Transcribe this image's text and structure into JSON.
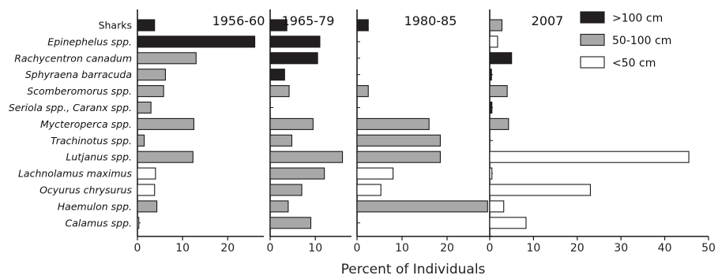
{
  "chart_data": {
    "type": "bar",
    "orientation": "horizontal",
    "categories": [
      "Sharks",
      "Epinephelus spp.",
      "Rachycentron canadum",
      "Sphyraena barracuda",
      "Scomberomorus spp.",
      "Seriola spp., Caranx spp.",
      "Mycteroperca spp.",
      "Trachinotus spp.",
      "Lutjanus spp.",
      "Lachnolamus maximus",
      "Ocyurus chrysurus",
      "Haemulon spp.",
      "Calamus spp."
    ],
    "category_italic": [
      false,
      true,
      true,
      true,
      true,
      true,
      true,
      true,
      true,
      true,
      true,
      true,
      true
    ],
    "xlabel": "Percent of Individuals",
    "legend": {
      "position": "top-right",
      "entries": [
        {
          "label": ">100 cm",
          "color": "#231f20"
        },
        {
          "label": "50-100 cm",
          "color": "#a8a8a8"
        },
        {
          "label": "<50 cm",
          "color": "#ffffff"
        }
      ]
    },
    "panels": [
      {
        "title": "1956-60",
        "xlim": [
          0,
          28
        ],
        "ticks": [
          0,
          10,
          20
        ],
        "bars": [
          {
            "value": 3.8,
            "size": ">100 cm"
          },
          {
            "value": 26.0,
            "size": ">100 cm"
          },
          {
            "value": 13.0,
            "size": "50-100 cm"
          },
          {
            "value": 6.2,
            "size": "50-100 cm"
          },
          {
            "value": 5.8,
            "size": "50-100 cm"
          },
          {
            "value": 3.0,
            "size": "50-100 cm"
          },
          {
            "value": 12.5,
            "size": "50-100 cm"
          },
          {
            "value": 1.5,
            "size": "50-100 cm"
          },
          {
            "value": 12.3,
            "size": "50-100 cm"
          },
          {
            "value": 4.0,
            "size": "<50 cm"
          },
          {
            "value": 3.8,
            "size": "<50 cm"
          },
          {
            "value": 4.3,
            "size": "50-100 cm"
          },
          {
            "value": 0.3,
            "size": "<50 cm"
          }
        ]
      },
      {
        "title": "1965-79",
        "xlim": [
          0,
          18
        ],
        "ticks": [
          0,
          10
        ],
        "bars": [
          {
            "value": 3.7,
            "size": ">100 cm"
          },
          {
            "value": 11.0,
            "size": ">100 cm"
          },
          {
            "value": 10.5,
            "size": ">100 cm"
          },
          {
            "value": 3.2,
            "size": ">100 cm"
          },
          {
            "value": 4.2,
            "size": "50-100 cm"
          },
          {
            "value": 0,
            "size": "50-100 cm"
          },
          {
            "value": 9.5,
            "size": "50-100 cm"
          },
          {
            "value": 4.8,
            "size": "50-100 cm"
          },
          {
            "value": 16.0,
            "size": "50-100 cm"
          },
          {
            "value": 12.0,
            "size": "50-100 cm"
          },
          {
            "value": 7.0,
            "size": "50-100 cm"
          },
          {
            "value": 4.0,
            "size": "50-100 cm"
          },
          {
            "value": 9.0,
            "size": "50-100 cm"
          }
        ]
      },
      {
        "title": "1980-85",
        "xlim": [
          0,
          30
        ],
        "ticks": [
          0,
          10,
          20
        ],
        "bars": [
          {
            "value": 2.5,
            "size": ">100 cm"
          },
          {
            "value": 0,
            "size": ">100 cm"
          },
          {
            "value": 0,
            "size": ">100 cm"
          },
          {
            "value": 0,
            "size": ">100 cm"
          },
          {
            "value": 2.5,
            "size": "50-100 cm"
          },
          {
            "value": 0,
            "size": "50-100 cm"
          },
          {
            "value": 16.0,
            "size": "50-100 cm"
          },
          {
            "value": 18.5,
            "size": "50-100 cm"
          },
          {
            "value": 18.5,
            "size": "50-100 cm"
          },
          {
            "value": 8.0,
            "size": "<50 cm"
          },
          {
            "value": 5.3,
            "size": "<50 cm"
          },
          {
            "value": 29.0,
            "size": "50-100 cm"
          },
          {
            "value": 0,
            "size": "<50 cm"
          }
        ]
      },
      {
        "title": "2007",
        "xlim": [
          0,
          50
        ],
        "ticks": [
          0,
          10,
          20,
          30,
          40,
          50
        ],
        "bars": [
          {
            "value": 2.8,
            "size": "50-100 cm"
          },
          {
            "value": 1.8,
            "size": "<50 cm"
          },
          {
            "value": 5.0,
            "size": ">100 cm"
          },
          {
            "value": 0.4,
            "size": ">100 cm"
          },
          {
            "value": 4.0,
            "size": "50-100 cm"
          },
          {
            "value": 0.5,
            "size": ">100 cm"
          },
          {
            "value": 4.3,
            "size": "50-100 cm"
          },
          {
            "value": 0,
            "size": "<50 cm"
          },
          {
            "value": 45.5,
            "size": "<50 cm"
          },
          {
            "value": 0.5,
            "size": "<50 cm"
          },
          {
            "value": 23.0,
            "size": "<50 cm"
          },
          {
            "value": 3.2,
            "size": "<50 cm"
          },
          {
            "value": 8.3,
            "size": "<50 cm"
          }
        ]
      }
    ]
  }
}
